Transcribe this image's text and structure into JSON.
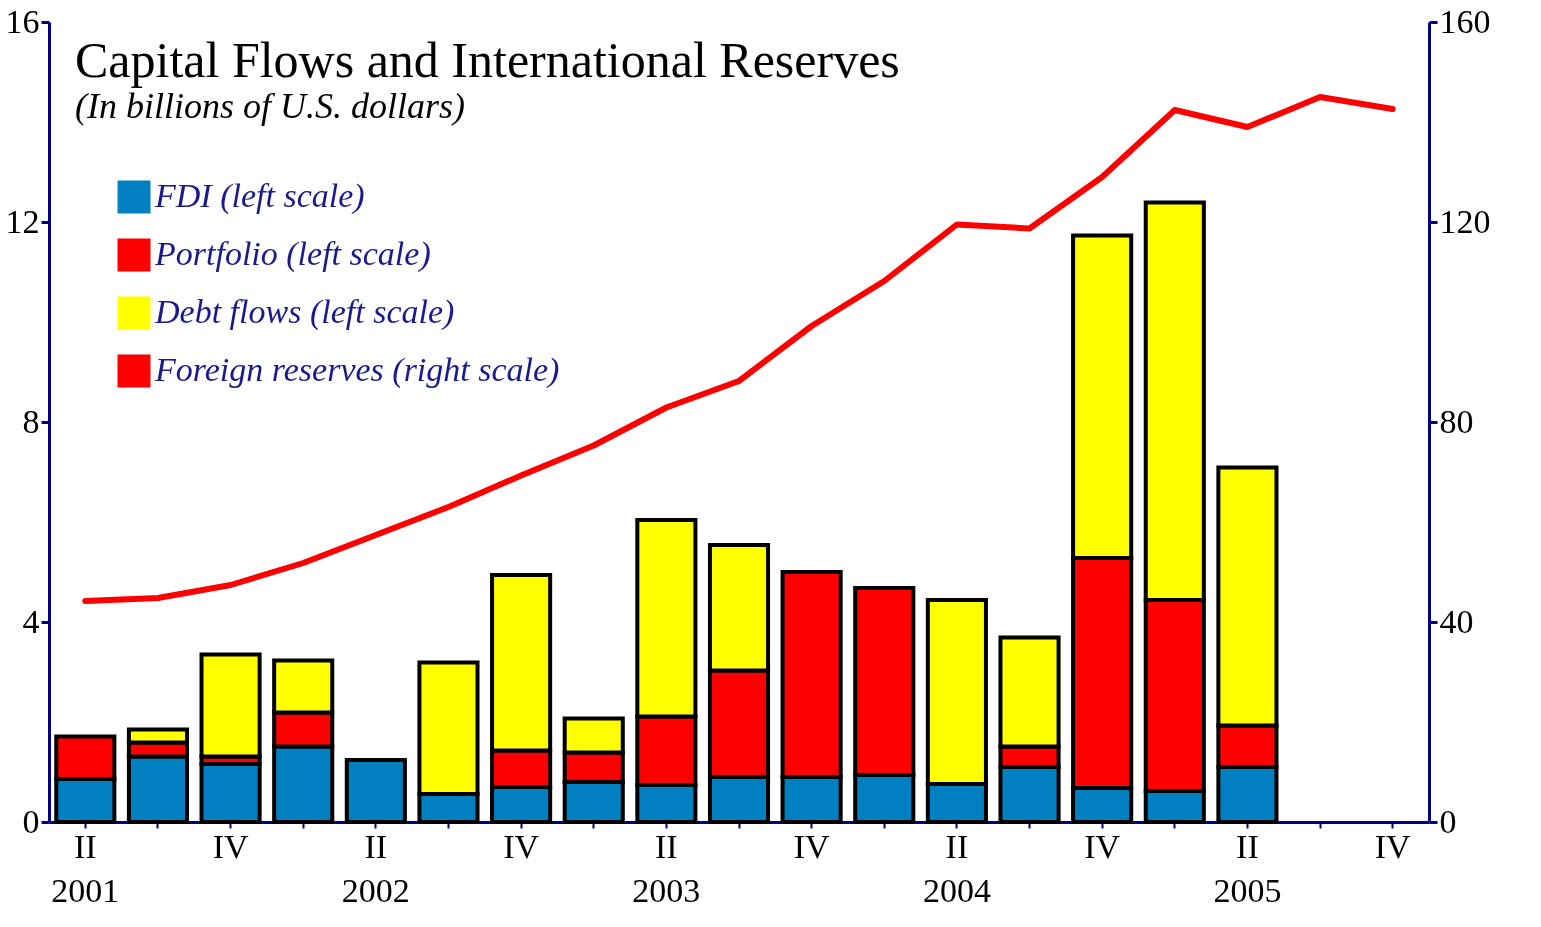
{
  "chart_data": {
    "type": "bar",
    "title": "Capital Flows and International Reserves",
    "subtitle": "(In billions of U.S. dollars)",
    "categories": [
      "II\n2001",
      null,
      "IV",
      null,
      "II\n2002",
      null,
      "IV",
      null,
      "II\n2003",
      null,
      "IV",
      null,
      "II\n2004",
      null,
      "IV",
      null,
      "II\n2005",
      null,
      "IV"
    ],
    "stacked": true,
    "series": [
      {
        "name": "FDI (left scale)",
        "color": "#0080c0",
        "values": [
          0.86,
          1.31,
          1.16,
          1.51,
          1.24,
          0.56,
          0.7,
          0.8,
          0.74,
          0.9,
          0.9,
          0.94,
          0.76,
          1.1,
          0.68,
          0.62,
          1.1,
          null,
          null
        ]
      },
      {
        "name": "Portfolio (left scale)",
        "color": "#ff0000",
        "values": [
          0.85,
          0.28,
          0.15,
          0.68,
          null,
          null,
          0.73,
          0.59,
          1.37,
          2.13,
          4.1,
          3.74,
          null,
          0.41,
          4.6,
          3.82,
          0.83,
          null,
          null
        ]
      },
      {
        "name": "Debt flows (left scale)",
        "color": "#ffff00",
        "values": [
          null,
          0.26,
          2.04,
          1.04,
          null,
          2.63,
          3.51,
          0.68,
          3.93,
          2.51,
          null,
          null,
          3.68,
          2.18,
          6.45,
          7.95,
          5.16,
          null,
          null
        ]
      },
      {
        "name": "Foreign reserves (right scale)",
        "type": "line",
        "axis": "y2",
        "color": "#ff0000",
        "values": [
          44.2,
          44.8,
          47.4,
          51.8,
          57.4,
          63,
          69.3,
          75.3,
          82.9,
          88.2,
          99.2,
          108.2,
          119.5,
          118.7,
          129,
          142.4,
          139,
          145,
          142.6
        ]
      }
    ],
    "ylim": [
      0,
      16
    ],
    "yticks": [
      0,
      4,
      8,
      12,
      16
    ],
    "y2lim": [
      0,
      160
    ],
    "y2ticks": [
      0,
      40,
      80,
      120,
      160
    ],
    "legend": "top left",
    "grid": false
  }
}
